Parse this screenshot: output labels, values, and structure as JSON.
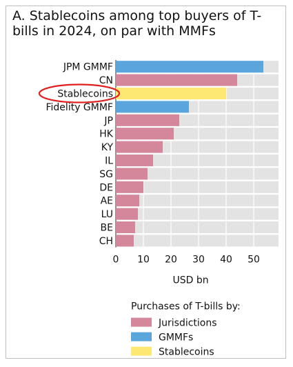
{
  "chart_data": {
    "type": "bar",
    "orientation": "horizontal",
    "title": "A. Stablecoins among top buyers of T-bills in 2024, on par with MMFs",
    "xlabel": "USD bn",
    "ylabel": "",
    "xlim": [
      0,
      59
    ],
    "xticks": [
      0,
      10,
      20,
      30,
      40,
      50
    ],
    "grid": true,
    "legend_placement": "bottom-right",
    "legend_title": "Purchases of T-bills by:",
    "highlight": "Stablecoins",
    "groups": [
      {
        "key": "jurisdictions",
        "name": "Jurisdictions",
        "color": "#d4879b"
      },
      {
        "key": "gmmfs",
        "name": "GMMFs",
        "color": "#5aa6dc"
      },
      {
        "key": "stablecoins",
        "name": "Stablecoins",
        "color": "#fde874"
      }
    ],
    "bars": [
      {
        "category": "JPM GMMF",
        "value": 53.5,
        "group": "gmmfs"
      },
      {
        "category": "CN",
        "value": 44,
        "group": "jurisdictions"
      },
      {
        "category": "Stablecoins",
        "value": 40,
        "group": "stablecoins"
      },
      {
        "category": "Fidelity GMMF",
        "value": 26.5,
        "group": "gmmfs"
      },
      {
        "category": "JP",
        "value": 23,
        "group": "jurisdictions"
      },
      {
        "category": "HK",
        "value": 21,
        "group": "jurisdictions"
      },
      {
        "category": "KY",
        "value": 17,
        "group": "jurisdictions"
      },
      {
        "category": "IL",
        "value": 13.5,
        "group": "jurisdictions"
      },
      {
        "category": "SG",
        "value": 11.5,
        "group": "jurisdictions"
      },
      {
        "category": "DE",
        "value": 10,
        "group": "jurisdictions"
      },
      {
        "category": "AE",
        "value": 8.5,
        "group": "jurisdictions"
      },
      {
        "category": "LU",
        "value": 8,
        "group": "jurisdictions"
      },
      {
        "category": "BE",
        "value": 7,
        "group": "jurisdictions"
      },
      {
        "category": "CH",
        "value": 6.5,
        "group": "jurisdictions"
      }
    ],
    "colors": {
      "background_band": "#e3e3e3",
      "highlight_ring": "#e01e1e"
    }
  }
}
